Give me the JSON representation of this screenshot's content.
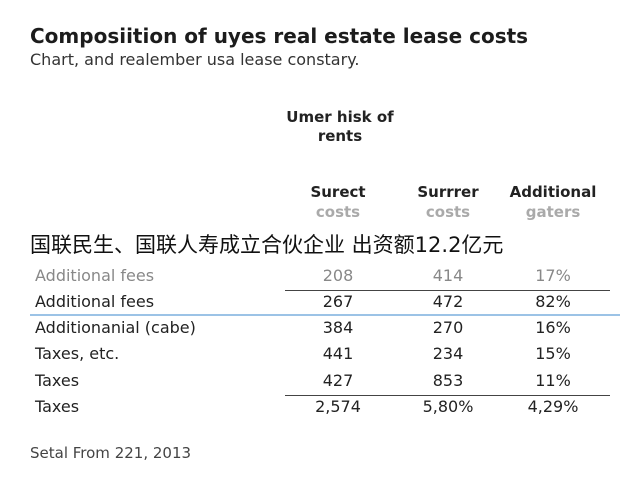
{
  "header": {
    "title": "Composiition of uyes real estate lease costs",
    "subtitle": "Chart, and realember usa lease constary."
  },
  "table": {
    "group_header": "Umer hisk of rents",
    "columns": [
      {
        "name": "Surect",
        "sub": "costs"
      },
      {
        "name": "Surrrer",
        "sub": "costs"
      },
      {
        "name": "Additional",
        "sub": "gaters"
      }
    ],
    "rows": [
      [
        "Additional fees",
        "208",
        "414",
        "17%"
      ],
      [
        "Additional fees",
        "267",
        "472",
        "82%"
      ],
      [
        "Additionanial (cabe)",
        "384",
        "270",
        "16%"
      ],
      [
        "Taxes, etc.",
        "441",
        "234",
        "15%"
      ],
      [
        "Taxes",
        "427",
        "853",
        "11%"
      ],
      [
        "Taxes",
        "2,574",
        "5,80%",
        "4,29%"
      ]
    ]
  },
  "overlay": "国联民生、国联人寿成立合伙企业 出资额12.2亿元",
  "footer": "Setal From 221, 2013"
}
